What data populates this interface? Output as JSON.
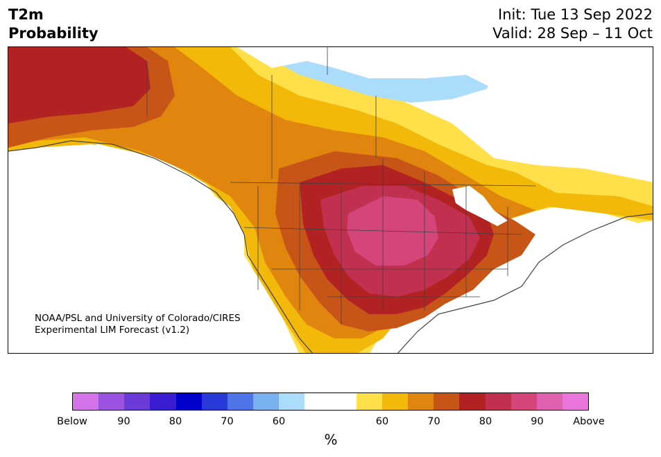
{
  "header": {
    "title_line1": "T2m",
    "title_line2": "Probability",
    "init": "Init: Tue 13 Sep 2022",
    "valid": "Valid: 28 Sep – 11 Oct"
  },
  "map": {
    "credit_line1": "NOAA/PSL and University of Colorado/CIRES",
    "credit_line2": "Experimental LIM Forecast (v1.2)",
    "dominant_category": "Above",
    "region": "North America"
  },
  "colorbar": {
    "unit_label": "%",
    "colors": [
      "#d472e8",
      "#9b52e0",
      "#6c3ad8",
      "#3a1dd0",
      "#0000cc",
      "#2a3ad8",
      "#4f74e8",
      "#78b0f0",
      "#acdcfc",
      "#ffffff",
      "#ffffff",
      "#ffe04a",
      "#f2b80a",
      "#e0860f",
      "#c85518",
      "#b22222",
      "#c23050",
      "#d4467a",
      "#e060b0",
      "#e874dc"
    ],
    "tick_labels": [
      "Below",
      "90",
      "80",
      "70",
      "60",
      "60",
      "70",
      "80",
      "90",
      "Above"
    ]
  },
  "colors": {
    "land_outline": "#404040",
    "cold_category": "#acdcfc",
    "peak_warm_category": "#d4467a"
  }
}
